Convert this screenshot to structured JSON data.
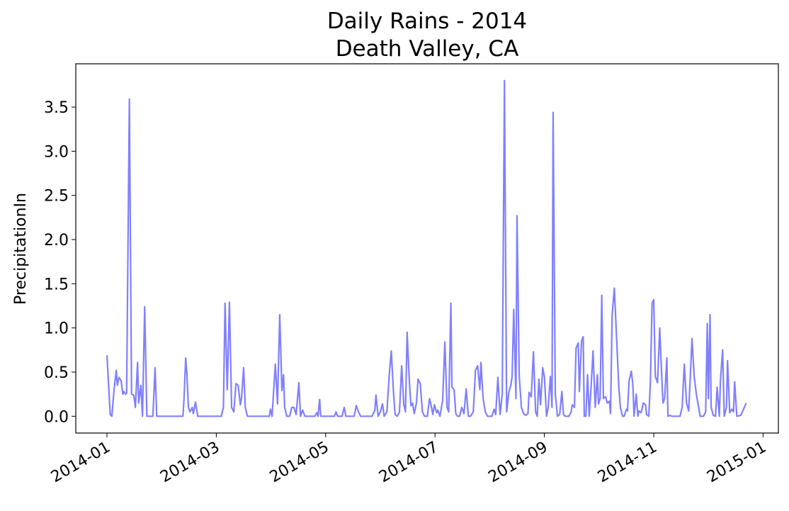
{
  "chart_data": {
    "type": "line",
    "title": "Daily Rains - 2014",
    "subtitle": "Death Valley, CA",
    "y_label": "PrecipitationIn",
    "color": "#8080ff",
    "x": [
      0,
      0.06,
      0.09,
      0.13,
      0.17,
      0.19,
      0.22,
      0.26,
      0.29,
      0.31,
      0.34,
      0.36,
      0.41,
      0.45,
      0.49,
      0.52,
      0.56,
      0.58,
      0.62,
      0.65,
      0.69,
      0.73,
      0.84,
      0.88,
      0.91,
      1.39,
      1.41,
      1.44,
      1.46,
      1.49,
      1.52,
      1.56,
      1.58,
      1.62,
      1.66,
      1.71,
      2.09,
      2.13,
      2.16,
      2.2,
      2.24,
      2.28,
      2.32,
      2.36,
      2.4,
      2.44,
      2.46,
      2.5,
      2.53,
      2.57,
      2.97,
      2.99,
      3.02,
      3.08,
      3.12,
      3.16,
      3.2,
      3.23,
      3.25,
      3.29,
      3.34,
      3.38,
      3.42,
      3.46,
      3.51,
      3.54,
      3.58,
      3.62,
      3.8,
      3.84,
      3.86,
      3.89,
      3.91,
      4.16,
      4.19,
      4.22,
      4.3,
      4.34,
      4.37,
      4.52,
      4.56,
      4.6,
      4.64,
      4.85,
      4.9,
      4.92,
      4.96,
      5.0,
      5.04,
      5.07,
      5.12,
      5.16,
      5.2,
      5.24,
      5.27,
      5.31,
      5.35,
      5.39,
      5.43,
      5.46,
      5.49,
      5.53,
      5.56,
      5.59,
      5.62,
      5.66,
      5.69,
      5.73,
      5.77,
      5.81,
      5.86,
      5.9,
      5.92,
      5.96,
      5.99,
      6.03,
      6.05,
      6.09,
      6.14,
      6.18,
      6.22,
      6.25,
      6.29,
      6.31,
      6.35,
      6.38,
      6.41,
      6.45,
      6.49,
      6.53,
      6.57,
      6.61,
      6.65,
      6.7,
      6.74,
      6.78,
      6.82,
      6.84,
      6.88,
      6.92,
      6.96,
      7.04,
      7.08,
      7.11,
      7.15,
      7.19,
      7.23,
      7.27,
      7.31,
      7.35,
      7.39,
      7.41,
      7.44,
      7.48,
      7.5,
      7.54,
      7.58,
      7.62,
      7.66,
      7.7,
      7.72,
      7.76,
      7.8,
      7.84,
      7.87,
      7.9,
      7.93,
      7.97,
      8.0,
      8.04,
      8.07,
      8.11,
      8.14,
      8.16,
      8.2,
      8.24,
      8.28,
      8.32,
      8.35,
      8.38,
      8.45,
      8.49,
      8.51,
      8.55,
      8.58,
      8.62,
      8.64,
      8.68,
      8.71,
      8.73,
      8.76,
      8.79,
      8.82,
      8.85,
      8.89,
      8.93,
      8.97,
      8.99,
      9.02,
      9.05,
      9.08,
      9.12,
      9.15,
      9.19,
      9.21,
      9.24,
      9.28,
      9.32,
      9.36,
      9.39,
      9.43,
      9.46,
      9.5,
      9.52,
      9.55,
      9.59,
      9.62,
      9.64,
      9.68,
      9.71,
      9.73,
      9.77,
      9.81,
      9.85,
      9.87,
      9.91,
      9.94,
      9.97,
      10.0,
      10.03,
      10.07,
      10.11,
      10.15,
      10.17,
      10.2,
      10.24,
      10.26,
      10.3,
      10.33,
      10.48,
      10.52,
      10.56,
      10.6,
      10.64,
      10.68,
      10.7,
      10.74,
      10.78,
      10.81,
      10.85,
      10.91,
      10.95,
      10.98,
      11.0,
      11.03,
      11.05,
      11.09,
      11.13,
      11.16,
      11.2,
      11.22,
      11.26,
      11.29,
      11.33,
      11.35,
      11.39,
      11.43,
      11.46,
      11.48,
      11.52,
      11.59,
      11.65,
      11.69
    ],
    "values": [
      0.69,
      0.02,
      0.0,
      0.3,
      0.52,
      0.35,
      0.44,
      0.4,
      0.25,
      0.28,
      0.25,
      0.26,
      3.59,
      0.25,
      0.24,
      0.1,
      0.61,
      0.15,
      0.35,
      0.0,
      1.24,
      0.0,
      0.0,
      0.55,
      0.0,
      0.0,
      0.2,
      0.66,
      0.5,
      0.1,
      0.05,
      0.1,
      0.03,
      0.16,
      0.0,
      0.0,
      0.0,
      0.1,
      1.28,
      0.3,
      1.29,
      0.1,
      0.05,
      0.37,
      0.35,
      0.13,
      0.2,
      0.55,
      0.1,
      0.0,
      0.0,
      0.08,
      0.0,
      0.59,
      0.14,
      1.15,
      0.29,
      0.47,
      0.1,
      0.0,
      0.0,
      0.1,
      0.1,
      0.02,
      0.38,
      0.0,
      0.07,
      0.0,
      0.0,
      0.04,
      0.0,
      0.19,
      0.0,
      0.0,
      0.05,
      0.0,
      0.0,
      0.1,
      0.0,
      0.0,
      0.12,
      0.05,
      0.0,
      0.0,
      0.07,
      0.24,
      0.0,
      0.05,
      0.14,
      0.0,
      0.05,
      0.44,
      0.74,
      0.28,
      0.02,
      0.0,
      0.05,
      0.57,
      0.13,
      0.05,
      0.95,
      0.4,
      0.12,
      0.15,
      0.03,
      0.15,
      0.42,
      0.37,
      0.05,
      0.0,
      0.0,
      0.2,
      0.15,
      0.02,
      0.13,
      0.04,
      0.07,
      0.0,
      0.18,
      0.84,
      0.1,
      0.05,
      1.28,
      0.33,
      0.3,
      0.03,
      0.0,
      0.0,
      0.1,
      0.03,
      0.31,
      0.0,
      0.0,
      0.05,
      0.52,
      0.57,
      0.3,
      0.61,
      0.2,
      0.05,
      0.0,
      0.0,
      0.08,
      0.02,
      0.44,
      0.02,
      0.25,
      3.8,
      0.05,
      0.27,
      0.36,
      0.45,
      1.21,
      0.2,
      2.27,
      0.46,
      0.1,
      0.03,
      0.01,
      0.03,
      0.27,
      0.22,
      0.73,
      0.05,
      0.0,
      0.42,
      0.13,
      0.55,
      0.45,
      0.0,
      0.1,
      0.45,
      0.1,
      3.44,
      0.25,
      0.0,
      0.02,
      0.28,
      0.02,
      0.0,
      0.0,
      0.05,
      0.13,
      0.1,
      0.77,
      0.83,
      0.28,
      0.85,
      0.9,
      0.0,
      0.0,
      0.47,
      0.0,
      0.28,
      0.74,
      0.1,
      0.47,
      0.14,
      0.2,
      1.37,
      0.2,
      0.22,
      0.15,
      0.17,
      0.03,
      1.15,
      1.45,
      0.9,
      0.35,
      0.1,
      0.0,
      0.0,
      0.08,
      0.06,
      0.4,
      0.51,
      0.35,
      0.0,
      0.25,
      0.0,
      0.06,
      0.04,
      0.15,
      0.13,
      0.02,
      0.0,
      0.4,
      1.28,
      1.32,
      0.45,
      0.38,
      1.0,
      0.4,
      0.15,
      0.2,
      0.66,
      0.0,
      0.01,
      0.0,
      0.0,
      0.1,
      0.59,
      0.15,
      0.06,
      0.6,
      0.88,
      0.45,
      0.25,
      0.14,
      0.0,
      0.0,
      0.05,
      1.05,
      0.2,
      1.15,
      0.1,
      0.01,
      0.0,
      0.33,
      0.0,
      0.4,
      0.75,
      0.0,
      0.1,
      0.63,
      0.04,
      0.08,
      0.05,
      0.39,
      0.0,
      0.01,
      0.09,
      0.15
    ],
    "xlim": [
      -0.57,
      12.28
    ],
    "xticks": [
      {
        "value": 0,
        "label": "2014-01"
      },
      {
        "value": 2,
        "label": "2014-03"
      },
      {
        "value": 4,
        "label": "2014-05"
      },
      {
        "value": 6,
        "label": "2014-07"
      },
      {
        "value": 8,
        "label": "2014-09"
      },
      {
        "value": 10,
        "label": "2014-11"
      },
      {
        "value": 12,
        "label": "2015-01"
      }
    ],
    "ylim": [
      -0.19,
      3.99
    ],
    "yticks": [
      {
        "value": 0,
        "label": "0.0"
      },
      0.5,
      {
        "value": 1,
        "label": "1.0"
      },
      1.5,
      {
        "value": 2,
        "label": "2.0"
      },
      2.5,
      {
        "value": 3,
        "label": "3.0"
      },
      3.5
    ]
  }
}
